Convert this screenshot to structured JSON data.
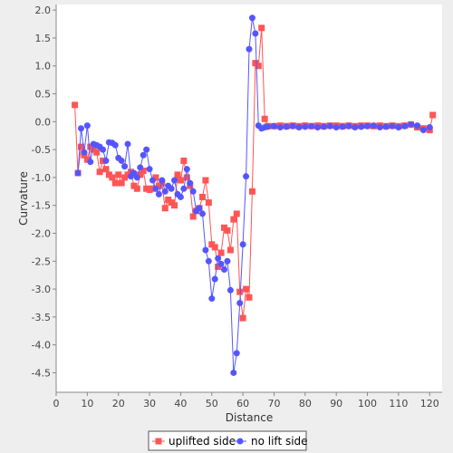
{
  "colors": {
    "uplifted": "#ff5555",
    "no_lift": "#5555ff",
    "plot_bg": "#ffffff",
    "page_bg": "#eeeeee",
    "axis": "#888888"
  },
  "chart_data": {
    "type": "line",
    "title": "",
    "xlabel": "Distance",
    "ylabel": "Curvature",
    "xlim": [
      0,
      124
    ],
    "ylim": [
      -4.85,
      2.1
    ],
    "x_ticks": [
      0,
      10,
      20,
      30,
      40,
      50,
      60,
      70,
      80,
      90,
      100,
      110,
      120
    ],
    "y_ticks": [
      2.0,
      1.5,
      1.0,
      0.5,
      0.0,
      -0.5,
      -1.0,
      -1.5,
      -2.0,
      -2.5,
      -3.0,
      -3.5,
      -4.0,
      -4.5
    ],
    "x_tick_labels": [
      "0",
      "10",
      "20",
      "30",
      "40",
      "50",
      "60",
      "70",
      "80",
      "90",
      "100",
      "110",
      "120"
    ],
    "y_tick_labels": [
      "2.0",
      "1.5",
      "1.0",
      "0.5",
      "0.0",
      "-0.5",
      "-1.0",
      "-1.5",
      "-2.0",
      "-2.5",
      "-3.0",
      "-3.5",
      "-4.0",
      "-4.5"
    ],
    "grid": false,
    "legend_position": "bottom-center",
    "series": [
      {
        "name": "uplifted side",
        "marker": "square",
        "color": "#ff5555",
        "x": [
          6,
          7,
          8,
          9,
          10,
          11,
          12,
          13,
          14,
          15,
          16,
          17,
          18,
          19,
          20,
          21,
          22,
          23,
          24,
          25,
          26,
          27,
          28,
          29,
          30,
          31,
          32,
          33,
          34,
          35,
          36,
          37,
          38,
          39,
          40,
          41,
          42,
          43,
          44,
          45,
          46,
          47,
          48,
          49,
          50,
          51,
          52,
          53,
          54,
          55,
          56,
          57,
          58,
          59,
          60,
          61,
          62,
          63,
          64,
          65,
          66,
          67,
          68,
          70,
          72,
          74,
          76,
          78,
          80,
          82,
          84,
          86,
          88,
          90,
          92,
          94,
          96,
          98,
          100,
          102,
          104,
          106,
          108,
          110,
          112,
          114,
          116,
          118,
          120,
          121
        ],
        "y": [
          0.3,
          -0.92,
          -0.45,
          -0.6,
          -0.68,
          -0.45,
          -0.5,
          -0.55,
          -0.9,
          -0.7,
          -0.85,
          -0.95,
          -1.0,
          -1.1,
          -0.95,
          -1.1,
          -1.0,
          -0.95,
          -0.9,
          -1.15,
          -1.2,
          -0.95,
          -0.88,
          -1.2,
          -1.22,
          -1.2,
          -1.0,
          -1.15,
          -1.1,
          -1.55,
          -1.4,
          -1.45,
          -1.5,
          -0.95,
          -1.05,
          -0.7,
          -1.0,
          -1.15,
          -1.7,
          -1.6,
          -1.55,
          -1.35,
          -1.05,
          -1.45,
          -2.2,
          -2.25,
          -2.6,
          -2.35,
          -1.9,
          -1.95,
          -2.3,
          -1.75,
          -1.65,
          -3.05,
          -3.52,
          -3.0,
          -3.15,
          -1.25,
          1.05,
          1.0,
          1.68,
          0.05,
          -0.08,
          -0.08,
          -0.07,
          -0.08,
          -0.07,
          -0.08,
          -0.07,
          -0.08,
          -0.07,
          -0.08,
          -0.07,
          -0.07,
          -0.08,
          -0.07,
          -0.08,
          -0.07,
          -0.07,
          -0.08,
          -0.07,
          -0.08,
          -0.07,
          -0.08,
          -0.07,
          -0.05,
          -0.1,
          -0.12,
          -0.15,
          0.12
        ]
      },
      {
        "name": "no lift side",
        "marker": "circle",
        "color": "#5555ff",
        "x": [
          7,
          8,
          9,
          10,
          11,
          12,
          13,
          14,
          15,
          16,
          17,
          18,
          19,
          20,
          21,
          22,
          23,
          24,
          25,
          26,
          27,
          28,
          29,
          30,
          31,
          32,
          33,
          34,
          35,
          36,
          37,
          38,
          39,
          40,
          41,
          42,
          43,
          44,
          45,
          46,
          47,
          48,
          49,
          50,
          51,
          52,
          53,
          54,
          55,
          56,
          57,
          58,
          59,
          60,
          61,
          62,
          63,
          64,
          65,
          66,
          67,
          68,
          70,
          72,
          74,
          76,
          78,
          80,
          82,
          84,
          86,
          88,
          90,
          92,
          94,
          96,
          98,
          100,
          102,
          104,
          106,
          108,
          110,
          112,
          114,
          116,
          118,
          120
        ],
        "y": [
          -0.92,
          -0.12,
          -0.55,
          -0.07,
          -0.72,
          -0.4,
          -0.42,
          -0.45,
          -0.5,
          -0.7,
          -0.37,
          -0.38,
          -0.42,
          -0.65,
          -0.7,
          -0.8,
          -0.4,
          -0.98,
          -0.92,
          -1.0,
          -0.82,
          -0.6,
          -0.5,
          -0.85,
          -1.05,
          -1.2,
          -1.3,
          -1.05,
          -1.25,
          -1.15,
          -1.2,
          -1.05,
          -1.3,
          -1.35,
          -1.2,
          -0.85,
          -1.1,
          -1.25,
          -1.6,
          -1.55,
          -1.65,
          -2.3,
          -2.5,
          -3.17,
          -2.82,
          -2.45,
          -2.55,
          -2.65,
          -2.5,
          -3.02,
          -4.5,
          -4.15,
          -3.25,
          -2.2,
          -0.98,
          1.3,
          1.86,
          1.58,
          -0.07,
          -0.12,
          -0.1,
          -0.09,
          -0.08,
          -0.1,
          -0.09,
          -0.08,
          -0.1,
          -0.09,
          -0.08,
          -0.1,
          -0.09,
          -0.08,
          -0.1,
          -0.09,
          -0.08,
          -0.1,
          -0.09,
          -0.08,
          -0.07,
          -0.1,
          -0.09,
          -0.08,
          -0.1,
          -0.08,
          -0.05,
          -0.07,
          -0.15,
          -0.1
        ]
      }
    ]
  }
}
